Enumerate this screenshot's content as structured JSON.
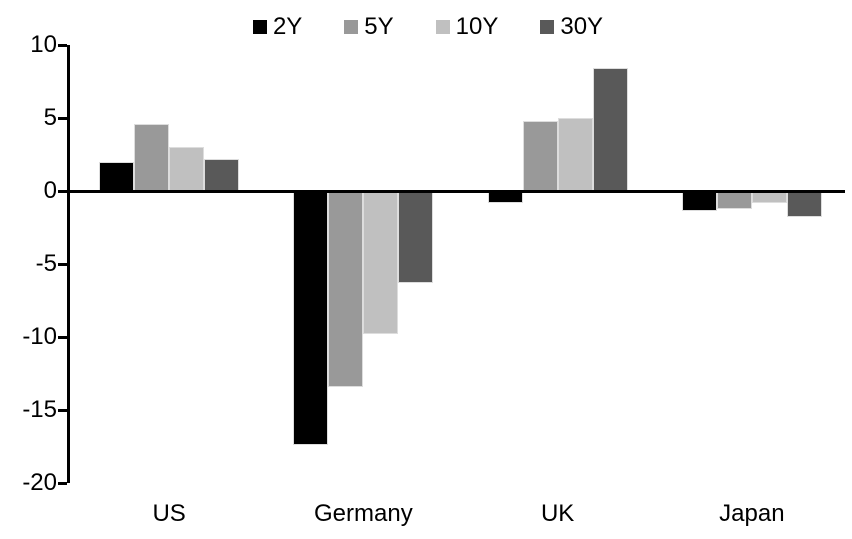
{
  "chart_data": {
    "type": "bar",
    "title": "",
    "categories": [
      "US",
      "Germany",
      "UK",
      "Japan"
    ],
    "series": [
      {
        "name": "2Y",
        "color": "#000000",
        "values": [
          2.0,
          -17.4,
          -0.8,
          -1.4
        ]
      },
      {
        "name": "5Y",
        "color": "#999999",
        "values": [
          4.6,
          -13.4,
          4.8,
          -1.2
        ]
      },
      {
        "name": "10Y",
        "color": "#c0c0c0",
        "values": [
          3.0,
          -9.8,
          5.0,
          -0.8
        ]
      },
      {
        "name": "30Y",
        "color": "#595959",
        "values": [
          2.2,
          -6.3,
          8.4,
          -1.8
        ]
      }
    ],
    "ylim": [
      -20,
      10
    ],
    "yticks": [
      10,
      5,
      0,
      -5,
      -10,
      -15,
      -20
    ],
    "grid": false,
    "legend_position": "top",
    "axis_color": "#000000",
    "background_color": "#ffffff"
  }
}
